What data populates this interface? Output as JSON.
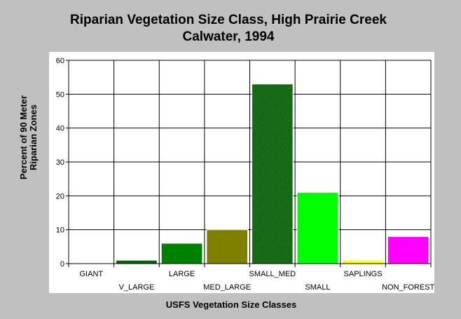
{
  "chart_data": {
    "type": "bar",
    "title": "Riparian Vegetation Size Class, High Prairie Creek",
    "subtitle": "Calwater, 1994",
    "xlabel": "USFS Vegetation Size Classes",
    "ylabel_line1": "Percent of 90 Meter",
    "ylabel_line2": "Riparian Zones",
    "ylim": [
      0,
      60
    ],
    "yticks": [
      "0",
      "10",
      "20",
      "30",
      "40",
      "50",
      "60"
    ],
    "grid": true,
    "categories": [
      "GIANT",
      "V_LARGE",
      "LARGE",
      "MED_LARGE",
      "SMALL_MED",
      "SMALL",
      "SAPLINGS",
      "NON_FOREST"
    ],
    "values": [
      0,
      1,
      6,
      10,
      53,
      21,
      1,
      8
    ],
    "colors": [
      "#006400",
      "#006400",
      "#008000",
      "#808000",
      "#1a8a1a",
      "#00ff00",
      "#ffff00",
      "#ff00ff"
    ]
  }
}
